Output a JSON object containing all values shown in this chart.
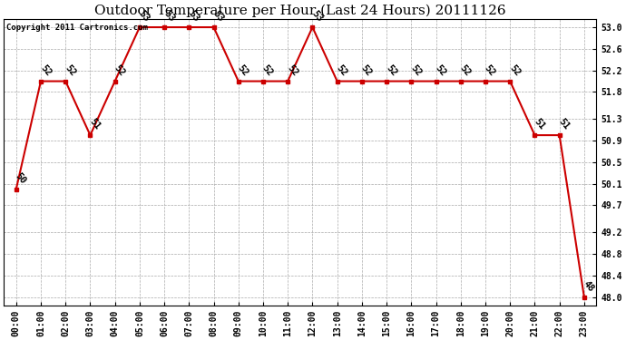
{
  "title": "Outdoor Temperature per Hour (Last 24 Hours) 20111126",
  "copyright": "Copyright 2011 Cartronics.com",
  "hours": [
    "00:00",
    "01:00",
    "02:00",
    "03:00",
    "04:00",
    "05:00",
    "06:00",
    "07:00",
    "08:00",
    "09:00",
    "10:00",
    "11:00",
    "12:00",
    "13:00",
    "14:00",
    "15:00",
    "16:00",
    "17:00",
    "18:00",
    "19:00",
    "20:00",
    "21:00",
    "22:00",
    "23:00"
  ],
  "temperatures": [
    50,
    52,
    52,
    51,
    52,
    53,
    53,
    53,
    53,
    52,
    52,
    52,
    53,
    52,
    52,
    52,
    52,
    52,
    52,
    52,
    52,
    51,
    51,
    48
  ],
  "ylim_min": 48.0,
  "ylim_max": 53.0,
  "yticks": [
    48.0,
    48.4,
    48.8,
    49.2,
    49.7,
    50.1,
    50.5,
    50.9,
    51.3,
    51.8,
    52.2,
    52.6,
    53.0
  ],
  "line_color": "#cc0000",
  "marker_color": "#cc0000",
  "bg_color": "#ffffff",
  "grid_color": "#aaaaaa",
  "title_fontsize": 11,
  "copyright_fontsize": 6.5,
  "label_fontsize": 7.5,
  "tick_fontsize": 7
}
